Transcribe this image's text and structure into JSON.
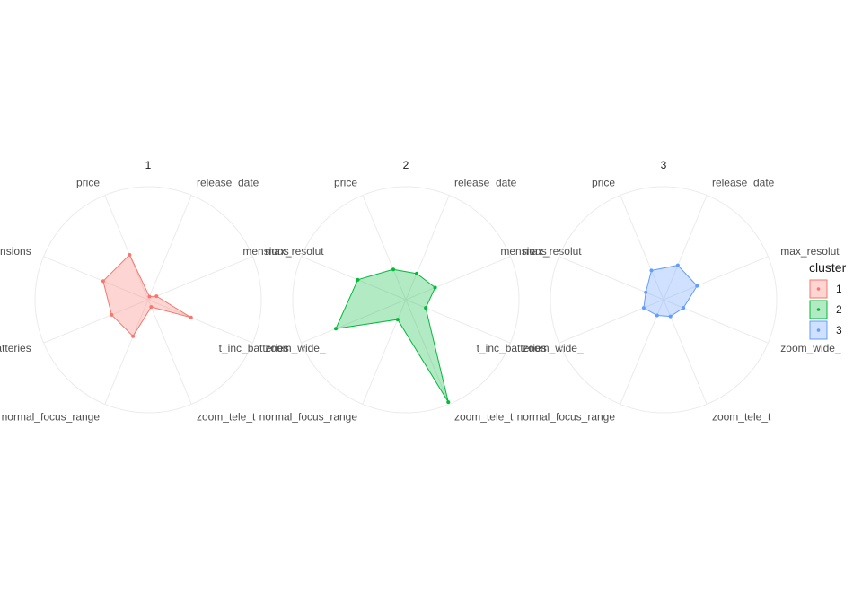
{
  "chart_data": {
    "type": "radar",
    "axes": [
      "price",
      "release_date",
      "max_resolut",
      "zoom_wide_",
      "zoom_tele_t",
      "normal_focus_range",
      "t_inc_batteries",
      "mensions"
    ],
    "rlim": [
      0,
      1
    ],
    "grid": true,
    "legend": {
      "title": "cluster",
      "placement": "right"
    },
    "facets": [
      {
        "title": "1",
        "cluster": "1",
        "color": "#F8766D",
        "fill": "#F8766D",
        "values": [
          0.43,
          0.03,
          0.08,
          0.41,
          0.07,
          0.35,
          0.35,
          0.43
        ]
      },
      {
        "title": "2",
        "cluster": "2",
        "color": "#00BA38",
        "fill": "#00BA38",
        "values": [
          0.29,
          0.25,
          0.28,
          0.19,
          0.98,
          0.19,
          0.67,
          0.46
        ]
      },
      {
        "title": "3",
        "cluster": "3",
        "color": "#619CFF",
        "fill": "#619CFF",
        "values": [
          0.28,
          0.33,
          0.32,
          0.19,
          0.16,
          0.15,
          0.19,
          0.17
        ]
      }
    ],
    "legend_entries": [
      {
        "label": "1",
        "color": "#F8766D"
      },
      {
        "label": "2",
        "color": "#00BA38"
      },
      {
        "label": "3",
        "color": "#619CFF"
      }
    ]
  }
}
